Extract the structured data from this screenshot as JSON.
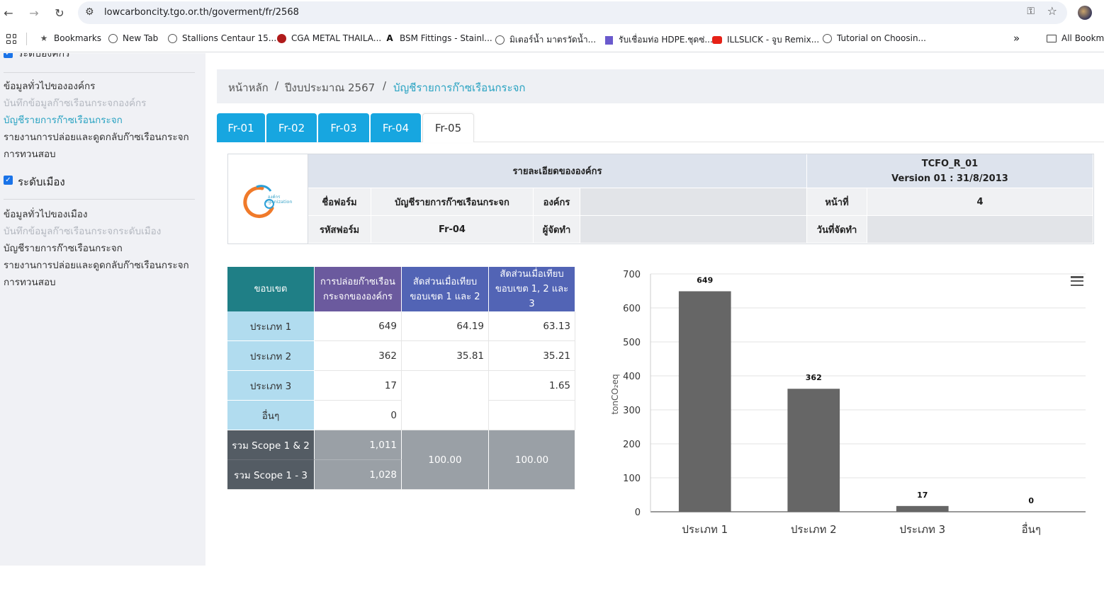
{
  "browser": {
    "url": "lowcarboncity.tgo.or.th/goverment/fr/2568",
    "bookmarks": [
      {
        "label": "Bookmarks",
        "icon": "star-icon"
      },
      {
        "label": "New Tab",
        "icon": "globe-icon"
      },
      {
        "label": "Stallions Centaur 15...",
        "icon": "globe-icon"
      },
      {
        "label": "CGA METAL THAILA...",
        "icon": "cga-icon"
      },
      {
        "label": "BSM Fittings - Stainl...",
        "icon": "bsm-icon"
      },
      {
        "label": "มิเตอร์น้ำ มาตรวัดน้ำ...",
        "icon": "globe-icon"
      },
      {
        "label": "รับเชื่อมท่อ HDPE.ชุดซ่...",
        "icon": "building-icon"
      },
      {
        "label": "ILLSLICK - จูบ Remix...",
        "icon": "youtube-icon"
      },
      {
        "label": "Tutorial on Choosin...",
        "icon": "globe-icon"
      }
    ],
    "more": "»",
    "all_bookmarks": "All Bookma"
  },
  "sidebar": {
    "partial_section": "ระดับองค์กร",
    "org_items": [
      {
        "label": "ข้อมูลทั่วไปขององค์กร",
        "state": "normal"
      },
      {
        "label": "บันทึกข้อมูลก๊าซเรือนกระจกองค์กร",
        "state": "muted"
      },
      {
        "label": "บัญชีรายการก๊าซเรือนกระจก",
        "state": "active"
      },
      {
        "label": "รายงานการปล่อยและดูดกลับก๊าซเรือนกระจก",
        "state": "normal"
      },
      {
        "label": "การทวนสอบ",
        "state": "normal"
      }
    ],
    "city_section": "ระดับเมือง",
    "city_items": [
      {
        "label": "ข้อมูลทั่วไปของเมือง",
        "state": "normal"
      },
      {
        "label": "บันทึกข้อมูลก๊าซเรือนกระจกระดับเมือง",
        "state": "muted"
      },
      {
        "label": "บัญชีรายการก๊าซเรือนกระจก",
        "state": "normal"
      },
      {
        "label": "รายงานการปล่อยและดูดกลับก๊าซเรือนกระจก",
        "state": "normal"
      },
      {
        "label": "การทวนสอบ",
        "state": "normal"
      }
    ]
  },
  "breadcrumb": {
    "home": "หน้าหลัก",
    "sep": "/",
    "year": "ปีงบประมาณ 2567",
    "current": "บัญชีรายการก๊าซเรือนกระจก"
  },
  "tabs": [
    "Fr-01",
    "Fr-02",
    "Fr-03",
    "Fr-04",
    "Fr-05"
  ],
  "active_tab": "Fr-05",
  "header_table": {
    "logo_text": "องค์กร\nrganization",
    "org_details": "รายละเอียดขององค์กร",
    "code": "TCFO_R_01",
    "version": "Version 01 : 31/8/2013",
    "form_name_label": "ชื่อฟอร์ม",
    "form_name": "บัญชีรายการก๊าซเรือนกระจก",
    "org_label": "องค์กร",
    "org_value": "",
    "page_label": "หน้าที่",
    "page_value": "4",
    "form_code_label": "รหัสฟอร์ม",
    "form_code": "Fr-04",
    "preparer_label": "ผู้จัดทำ",
    "preparer_value": "",
    "date_label": "วันที่จัดทำ",
    "date_value": ""
  },
  "data_table": {
    "headers": [
      "ขอบเขต",
      "การปล่อยก๊าซเรือนกระจกขององค์กร",
      "สัดส่วนเมื่อเทียบขอบเขต 1 และ 2",
      "สัดส่วนเมื่อเทียบขอบเขต 1, 2 และ 3"
    ],
    "rows": [
      {
        "label": "ประเภท 1",
        "emission": "649",
        "ratio12": "64.19",
        "ratio123": "63.13"
      },
      {
        "label": "ประเภท 2",
        "emission": "362",
        "ratio12": "35.81",
        "ratio123": "35.21"
      },
      {
        "label": "ประเภท 3",
        "emission": "17",
        "ratio12": "",
        "ratio123": "1.65"
      },
      {
        "label": "อื่นๆ",
        "emission": "0",
        "ratio12": "",
        "ratio123": ""
      }
    ],
    "total12_label": "รวม Scope 1 & 2",
    "total12_value": "1,011",
    "total123_label": "รวม Scope 1 - 3",
    "total123_value": "1,028",
    "total_ratio12": "100.00",
    "total_ratio123": "100.00"
  },
  "colors": {
    "teal_header": "#1f7f86",
    "purple_header": "#6b5a9e",
    "blue_header": "#5264b5",
    "label_bg": "#b1dcef",
    "total_dark": "#545c64",
    "total_mid": "#9aa0a6",
    "bar": "#666666",
    "tab": "#17a6e0",
    "accent_text": "#2aa3c2"
  },
  "chart_data": {
    "type": "bar",
    "categories": [
      "ประเภท 1",
      "ประเภท 2",
      "ประเภท 3",
      "อื่นๆ"
    ],
    "values": [
      649,
      362,
      17,
      0
    ],
    "data_labels": [
      "649",
      "362",
      "17",
      "0"
    ],
    "ylabel": "tonCO₂eq",
    "ylim": [
      0,
      700
    ],
    "yticks": [
      0,
      100,
      200,
      300,
      400,
      500,
      600,
      700
    ],
    "grid": true,
    "legend": "none"
  }
}
